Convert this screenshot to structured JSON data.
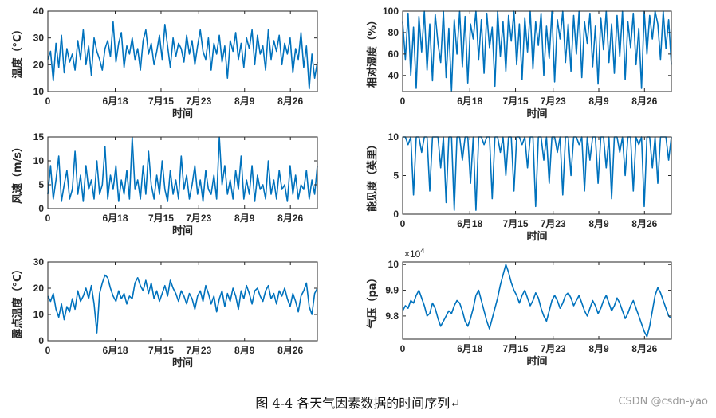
{
  "caption": "图 4-4  各天气因素数据的时间序列↵",
  "watermark": "CSDN @csdn-yao",
  "colors": {
    "line": "#0072BD",
    "axis": "#262626"
  },
  "chart_data": [
    {
      "type": "line",
      "name": "temperature",
      "ylabel": "温度（°C）",
      "xlabel": "时间",
      "xticks": [
        "0",
        "6月18",
        "7月15",
        "7月23",
        "8月9",
        "8月26"
      ],
      "xlim": [
        0,
        1000
      ],
      "xtick_pos": [
        0,
        250,
        420,
        560,
        730,
        900
      ],
      "ylim": [
        10,
        40
      ],
      "yticks": [
        10,
        20,
        30,
        40
      ],
      "series": [
        {
          "values": [
            22,
            25,
            14,
            28,
            19,
            31,
            17,
            26,
            21,
            24,
            18,
            29,
            22,
            33,
            20,
            27,
            16,
            30,
            25,
            22,
            18,
            26,
            29,
            23,
            36,
            21,
            28,
            32,
            19,
            27,
            24,
            30,
            22,
            26,
            18,
            29,
            33,
            24,
            28,
            20,
            25,
            31,
            22,
            35,
            27,
            19,
            30,
            23,
            28,
            26,
            21,
            31,
            24,
            29,
            20,
            27,
            33,
            25,
            22,
            30,
            18,
            28,
            24,
            31,
            21,
            27,
            15,
            29,
            25,
            32,
            22,
            28,
            19,
            30,
            26,
            33,
            20,
            31,
            24,
            27,
            18,
            33,
            22,
            29,
            25,
            31,
            20,
            28,
            24,
            30,
            17,
            26,
            22,
            32,
            19,
            27,
            11,
            24,
            15,
            21
          ]
        }
      ]
    },
    {
      "type": "line",
      "name": "humidity",
      "ylabel": "相对湿度（%）",
      "xlabel": "时间",
      "xticks": [
        "0",
        "6月18",
        "7月15",
        "7月23",
        "8月9",
        "8月26"
      ],
      "xlim": [
        0,
        1000
      ],
      "xtick_pos": [
        0,
        250,
        420,
        560,
        730,
        900
      ],
      "ylim": [
        25,
        100
      ],
      "yticks": [
        40,
        60,
        80,
        100
      ],
      "series": [
        {
          "values": [
            90,
            55,
            98,
            40,
            85,
            28,
            95,
            62,
            100,
            45,
            88,
            35,
            97,
            70,
            52,
            100,
            38,
            84,
            26,
            92,
            60,
            100,
            48,
            95,
            33,
            88,
            74,
            100,
            55,
            92,
            42,
            98,
            66,
            85,
            30,
            100,
            58,
            90,
            44,
            96,
            72,
            100,
            50,
            88,
            36,
            94,
            62,
            100,
            46,
            90,
            68,
            98,
            40,
            86,
            56,
            100,
            34,
            92,
            74,
            100,
            52,
            88,
            44,
            96,
            60,
            100,
            38,
            90,
            70,
            98,
            48,
            86,
            32,
            94,
            64,
            100,
            52,
            88,
            42,
            96,
            58,
            100,
            36,
            90,
            66,
            98,
            50,
            84,
            28,
            100,
            60,
            96,
            74,
            100,
            88,
            55,
            100,
            65,
            92,
            50
          ]
        }
      ]
    },
    {
      "type": "line",
      "name": "wind_speed",
      "ylabel": "风速（m/s）",
      "xlabel": "时间",
      "xticks": [
        "0",
        "6月18",
        "7月15",
        "7月23",
        "8月9",
        "8月26"
      ],
      "xlim": [
        0,
        1000
      ],
      "xtick_pos": [
        0,
        250,
        420,
        560,
        730,
        900
      ],
      "ylim": [
        0,
        15
      ],
      "yticks": [
        0,
        5,
        10,
        15
      ],
      "series": [
        {
          "values": [
            3,
            9,
            2,
            6,
            11,
            1.5,
            5,
            8,
            2,
            4,
            12,
            3,
            7,
            1.5,
            9,
            4,
            6,
            2,
            10,
            3,
            5,
            13,
            2,
            7,
            4,
            9,
            1.5,
            6,
            3,
            8,
            2,
            15,
            4,
            6,
            2,
            9,
            3,
            12,
            5,
            2,
            7,
            3,
            10,
            4,
            1.5,
            8,
            3,
            6,
            2,
            11,
            4,
            7,
            2,
            5,
            9,
            3,
            6,
            1.5,
            8,
            4,
            3,
            7,
            2,
            15,
            5,
            9,
            3,
            6,
            2,
            8,
            4,
            11,
            2,
            6,
            3,
            9,
            1.5,
            7,
            4,
            5,
            2,
            10,
            3,
            6,
            2,
            8,
            4,
            5,
            1.5,
            9,
            3,
            7,
            2,
            5,
            4,
            8,
            2,
            6,
            3,
            9
          ]
        }
      ]
    },
    {
      "type": "line",
      "name": "visibility",
      "ylabel": "能见度（英里）",
      "xlabel": "时间",
      "xticks": [
        "0",
        "6月18",
        "7月15",
        "7月23",
        "8月9",
        "8月26"
      ],
      "xlim": [
        0,
        1000
      ],
      "xtick_pos": [
        0,
        250,
        420,
        560,
        730,
        900
      ],
      "ylim": [
        0,
        10
      ],
      "yticks": [
        0,
        5,
        10
      ],
      "series": [
        {
          "values": [
            10,
            10,
            9,
            10,
            2.5,
            10,
            10,
            8,
            10,
            10,
            3,
            10,
            10,
            10,
            6,
            10,
            1.5,
            10,
            10,
            0.5,
            10,
            10,
            7,
            10,
            10,
            4,
            10,
            0.5,
            10,
            10,
            9,
            10,
            10,
            2,
            10,
            10,
            8,
            10,
            5,
            10,
            10,
            3,
            10,
            10,
            9,
            10,
            6,
            10,
            10,
            1,
            10,
            10,
            7,
            10,
            4,
            10,
            10,
            8,
            10,
            2.5,
            10,
            10,
            5,
            10,
            10,
            9,
            10,
            3,
            10,
            7,
            10,
            10,
            4,
            10,
            10,
            6,
            10,
            2,
            10,
            10,
            8,
            10,
            5,
            10,
            10,
            3,
            10,
            9,
            10,
            1,
            10,
            10,
            6,
            10,
            4,
            10,
            10,
            10,
            7,
            10
          ]
        }
      ]
    },
    {
      "type": "line",
      "name": "dew_point",
      "ylabel": "露点温度（°C）",
      "xlabel": "时间",
      "xticks": [
        "0",
        "6月18",
        "7月15",
        "7月23",
        "8月9",
        "8月26"
      ],
      "xlim": [
        0,
        1000
      ],
      "xtick_pos": [
        0,
        250,
        420,
        560,
        730,
        900
      ],
      "ylim": [
        0,
        30
      ],
      "yticks": [
        0,
        10,
        20,
        30
      ],
      "series": [
        {
          "values": [
            17,
            15,
            18,
            12,
            9,
            14,
            8,
            13,
            11,
            16,
            12,
            19,
            15,
            17,
            20,
            16,
            21,
            14,
            3,
            18,
            22,
            25,
            24,
            20,
            17,
            15,
            19,
            16,
            18,
            14,
            17,
            16,
            22,
            24,
            21,
            19,
            23,
            18,
            22,
            16,
            19,
            15,
            18,
            21,
            17,
            23,
            20,
            18,
            15,
            19,
            17,
            14,
            18,
            16,
            12,
            17,
            19,
            15,
            21,
            18,
            14,
            17,
            11,
            16,
            19,
            13,
            18,
            15,
            20,
            17,
            12,
            19,
            16,
            21,
            18,
            14,
            19,
            20,
            17,
            15,
            19,
            21,
            16,
            18,
            14,
            19,
            17,
            20,
            16,
            13,
            18,
            15,
            11,
            17,
            19,
            22,
            13,
            10,
            18,
            20
          ]
        }
      ]
    },
    {
      "type": "line",
      "name": "pressure",
      "ylabel": "气压（pa）",
      "xlabel": "时间",
      "multiplier": "×10^4",
      "xticks": [
        "0",
        "6月18",
        "7月15",
        "7月23",
        "8月9",
        "8月26"
      ],
      "xlim": [
        0,
        1000
      ],
      "xtick_pos": [
        0,
        250,
        420,
        560,
        730,
        900
      ],
      "ylim": [
        9.71,
        10.01
      ],
      "yticks": [
        9.8,
        9.9,
        10
      ],
      "ytick_labels": [
        "9.8",
        "9.9",
        "10"
      ],
      "series": [
        {
          "values": [
            9.82,
            9.84,
            9.83,
            9.86,
            9.85,
            9.88,
            9.9,
            9.87,
            9.84,
            9.8,
            9.81,
            9.85,
            9.83,
            9.79,
            9.76,
            9.78,
            9.8,
            9.82,
            9.81,
            9.84,
            9.86,
            9.85,
            9.82,
            9.78,
            9.76,
            9.79,
            9.83,
            9.88,
            9.9,
            9.86,
            9.82,
            9.78,
            9.75,
            9.79,
            9.83,
            9.87,
            9.92,
            9.96,
            10.0,
            9.97,
            9.93,
            9.9,
            9.88,
            9.85,
            9.88,
            9.9,
            9.87,
            9.84,
            9.86,
            9.89,
            9.87,
            9.83,
            9.8,
            9.78,
            9.82,
            9.86,
            9.88,
            9.86,
            9.83,
            9.85,
            9.88,
            9.89,
            9.87,
            9.84,
            9.86,
            9.88,
            9.85,
            9.82,
            9.8,
            9.83,
            9.86,
            9.84,
            9.81,
            9.83,
            9.86,
            9.88,
            9.85,
            9.82,
            9.84,
            9.87,
            9.85,
            9.82,
            9.79,
            9.81,
            9.84,
            9.86,
            9.83,
            9.8,
            9.77,
            9.74,
            9.72,
            9.76,
            9.82,
            9.88,
            9.91,
            9.89,
            9.86,
            9.83,
            9.8,
            9.79
          ]
        }
      ]
    }
  ]
}
